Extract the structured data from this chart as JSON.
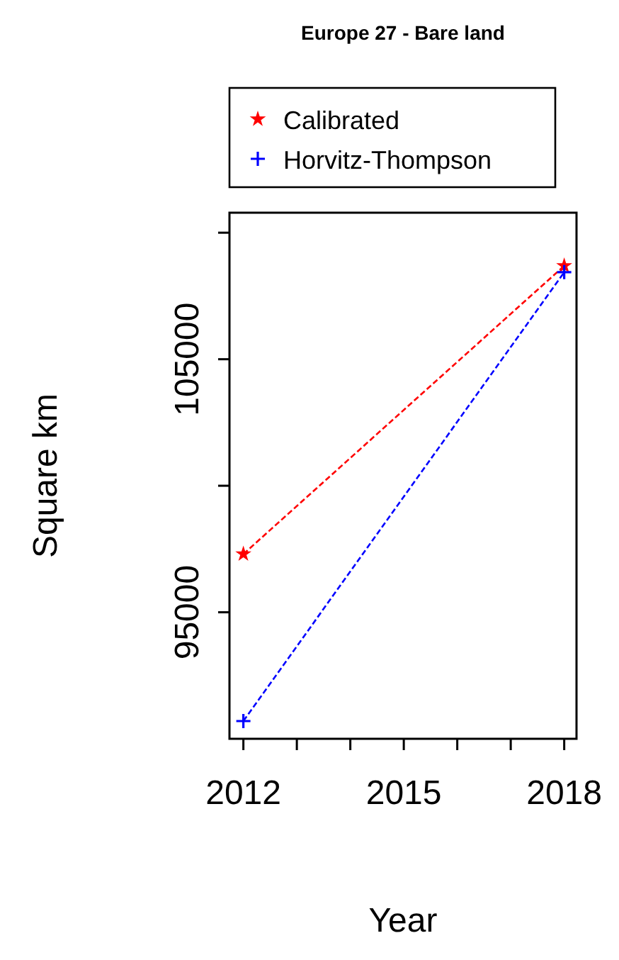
{
  "chart_data": {
    "type": "line",
    "title": "Europe 27 - Bare land",
    "xlabel": "Year",
    "ylabel": "Square km",
    "x": [
      2012,
      2018
    ],
    "series": [
      {
        "name": "Calibrated",
        "color": "#ff0000",
        "values": [
          97300,
          108690
        ],
        "marker": "star"
      },
      {
        "name": "Horvitz-Thompson",
        "color": "#0000ff",
        "values": [
          90700,
          108440
        ],
        "marker": "cross"
      }
    ],
    "xlim": [
      2011.74,
      2018.23
    ],
    "xticks": [
      2012,
      {
        "value": 2013,
        "label": null
      },
      {
        "value": 2014,
        "label": null
      },
      2015,
      {
        "value": 2016,
        "label": null
      },
      {
        "value": 2017,
        "label": null
      },
      2018
    ],
    "ylim": [
      90000,
      110790
    ],
    "yticks": [
      95000,
      {
        "value": 100000,
        "label": null
      },
      105000,
      {
        "value": 110000,
        "label": null
      }
    ],
    "legend": "top",
    "grid": false,
    "line_style": "dashed"
  }
}
